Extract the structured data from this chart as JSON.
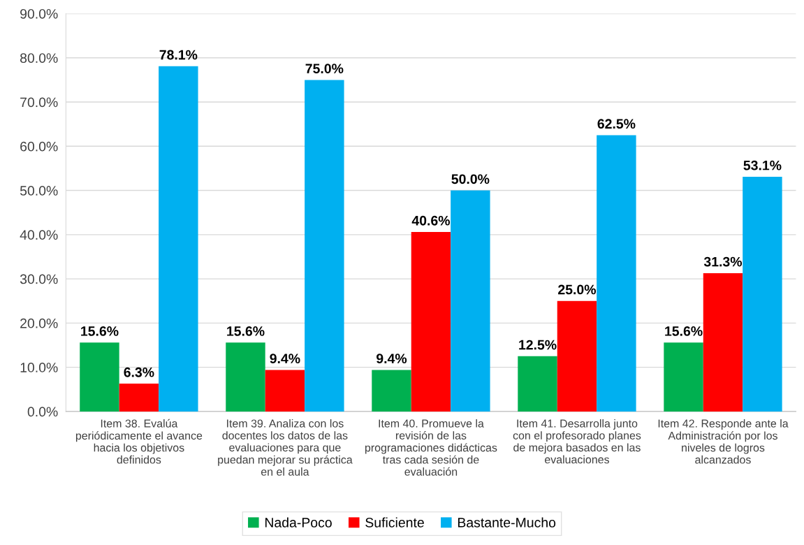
{
  "chart_data": {
    "type": "bar",
    "categories": [
      "Item 38. Evalúa\nperiódicamente el avance\nhacia los objetivos\ndefinidos",
      "Item 39. Analiza con los\ndocentes los datos de las\nevaluaciones para que\npuedan mejorar su práctica\nen el aula",
      "Item 40. Promueve la\nrevisión de las\nprogramaciones didácticas\ntras cada sesión de\nevaluación",
      "Item 41. Desarrolla junto\ncon el profesorado planes\nde mejora basados en las\nevaluaciones",
      "Item 42. Responde ante la\nAdministración por los\nniveles de logros\nalcanzados"
    ],
    "series": [
      {
        "name": "Nada-Poco",
        "color": "#00b050",
        "values": [
          15.6,
          15.6,
          9.4,
          12.5,
          15.6
        ],
        "value_labels": [
          "15.6%",
          "15.6%",
          "9.4%",
          "12.5%",
          "15.6%"
        ]
      },
      {
        "name": "Suficiente",
        "color": "#ff0000",
        "values": [
          6.3,
          9.4,
          40.6,
          25.0,
          31.3
        ],
        "value_labels": [
          "6.3%",
          "9.4%",
          "40.6%",
          "25.0%",
          "31.3%"
        ]
      },
      {
        "name": "Bastante-Mucho",
        "color": "#00b0f0",
        "values": [
          78.1,
          75.0,
          50.0,
          62.5,
          53.1
        ],
        "value_labels": [
          "78.1%",
          "75.0%",
          "50.0%",
          "62.5%",
          "53.1%"
        ]
      }
    ],
    "ylim": [
      0,
      90
    ],
    "yticks": [
      {
        "value": 0,
        "label": "0.0%"
      },
      {
        "value": 10,
        "label": "10.0%"
      },
      {
        "value": 20,
        "label": "20.0%"
      },
      {
        "value": 30,
        "label": "30.0%"
      },
      {
        "value": 40,
        "label": "40.0%"
      },
      {
        "value": 50,
        "label": "50.0%"
      },
      {
        "value": 60,
        "label": "60.0%"
      },
      {
        "value": 70,
        "label": "70.0%"
      },
      {
        "value": 80,
        "label": "80.0%"
      },
      {
        "value": 90,
        "label": "90.0%"
      }
    ],
    "grid": "y",
    "legend": "bottom"
  }
}
